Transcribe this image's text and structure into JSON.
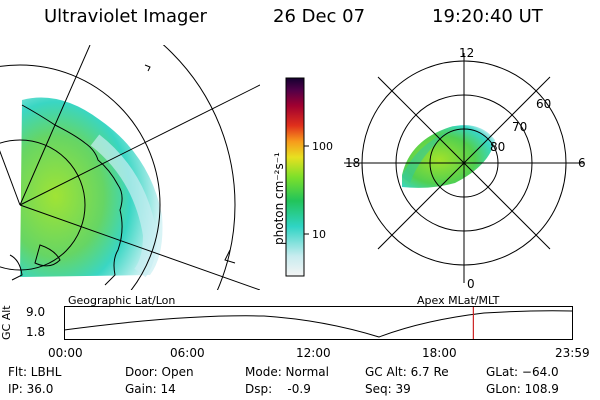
{
  "header": {
    "title": "Ultraviolet Imager",
    "date": "26 Dec 07",
    "time": "19:20:40 UT"
  },
  "colorbar": {
    "label": "photon cm⁻²s⁻¹",
    "tick_labels": [
      "100",
      "10"
    ]
  },
  "polar_plot": {
    "mlt_labels": {
      "top": "12",
      "left": "18",
      "right": "6",
      "bottom": "0"
    },
    "lat_labels": [
      "60",
      "70",
      "80"
    ]
  },
  "projections": {
    "left": "Geographic Lat/Lon",
    "right": "Apex MLat/MLT"
  },
  "orbit_plot": {
    "ylabel": "GC Alt",
    "ytick_labels": [
      "9.0",
      "1.8"
    ],
    "xtick_labels": [
      "00:00",
      "06:00",
      "12:00",
      "18:00",
      "23:59"
    ],
    "current_time_marker_hours": 19.34,
    "marker_color": "#cc2222"
  },
  "status": {
    "flt": "Flt: LBHL",
    "ip": "IP: 36.0",
    "door": "Door: Open",
    "gain": "Gain: 14",
    "mode": "Mode: Normal",
    "dsp": "Dsp:    -0.9",
    "gc_alt": "GC Alt: 6.7 Re",
    "seq": "Seq: 39",
    "glat": "GLat: −64.0",
    "glon": "GLon: 108.9"
  }
}
